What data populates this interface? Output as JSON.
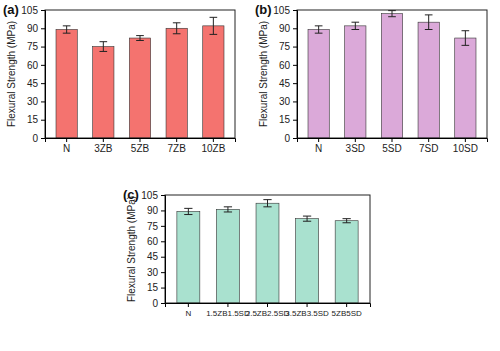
{
  "chart_data": [
    {
      "type": "bar",
      "title": "(a)",
      "y_label": "Flexural Strength (MPa)",
      "categories": [
        "N",
        "3ZB",
        "5ZB",
        "7ZB",
        "10ZB"
      ],
      "values": [
        89,
        75,
        82,
        90,
        92
      ],
      "errors": [
        3,
        4,
        2,
        4.5,
        7
      ],
      "color": "#f4736f",
      "ylim": [
        0,
        105
      ],
      "yticks": [
        0,
        15,
        30,
        45,
        60,
        75,
        90,
        105
      ]
    },
    {
      "type": "bar",
      "title": "(b)",
      "y_label": "Flexural Strength (MPa)",
      "categories": [
        "N",
        "3SD",
        "5SD",
        "7SD",
        "10SD"
      ],
      "values": [
        89,
        92,
        102,
        95,
        82
      ],
      "errors": [
        3,
        3,
        2.5,
        6,
        6
      ],
      "color": "#dba9d9",
      "ylim": [
        0,
        105
      ],
      "yticks": [
        0,
        15,
        30,
        45,
        60,
        75,
        90,
        105
      ]
    },
    {
      "type": "bar",
      "title": "(c)",
      "y_label": "Flexural Strength (MPa)",
      "categories": [
        "N",
        "1.5ZB1.5SD",
        "2.5ZB2.5SD",
        "3.5ZB3.5SD",
        "5ZB5SD"
      ],
      "values": [
        89,
        91,
        97,
        82,
        80
      ],
      "errors": [
        3,
        2.5,
        3.5,
        2.5,
        2
      ],
      "color": "#a9e1cf",
      "ylim": [
        0,
        105
      ],
      "yticks": [
        0,
        15,
        30,
        45,
        60,
        75,
        90,
        105
      ]
    }
  ]
}
